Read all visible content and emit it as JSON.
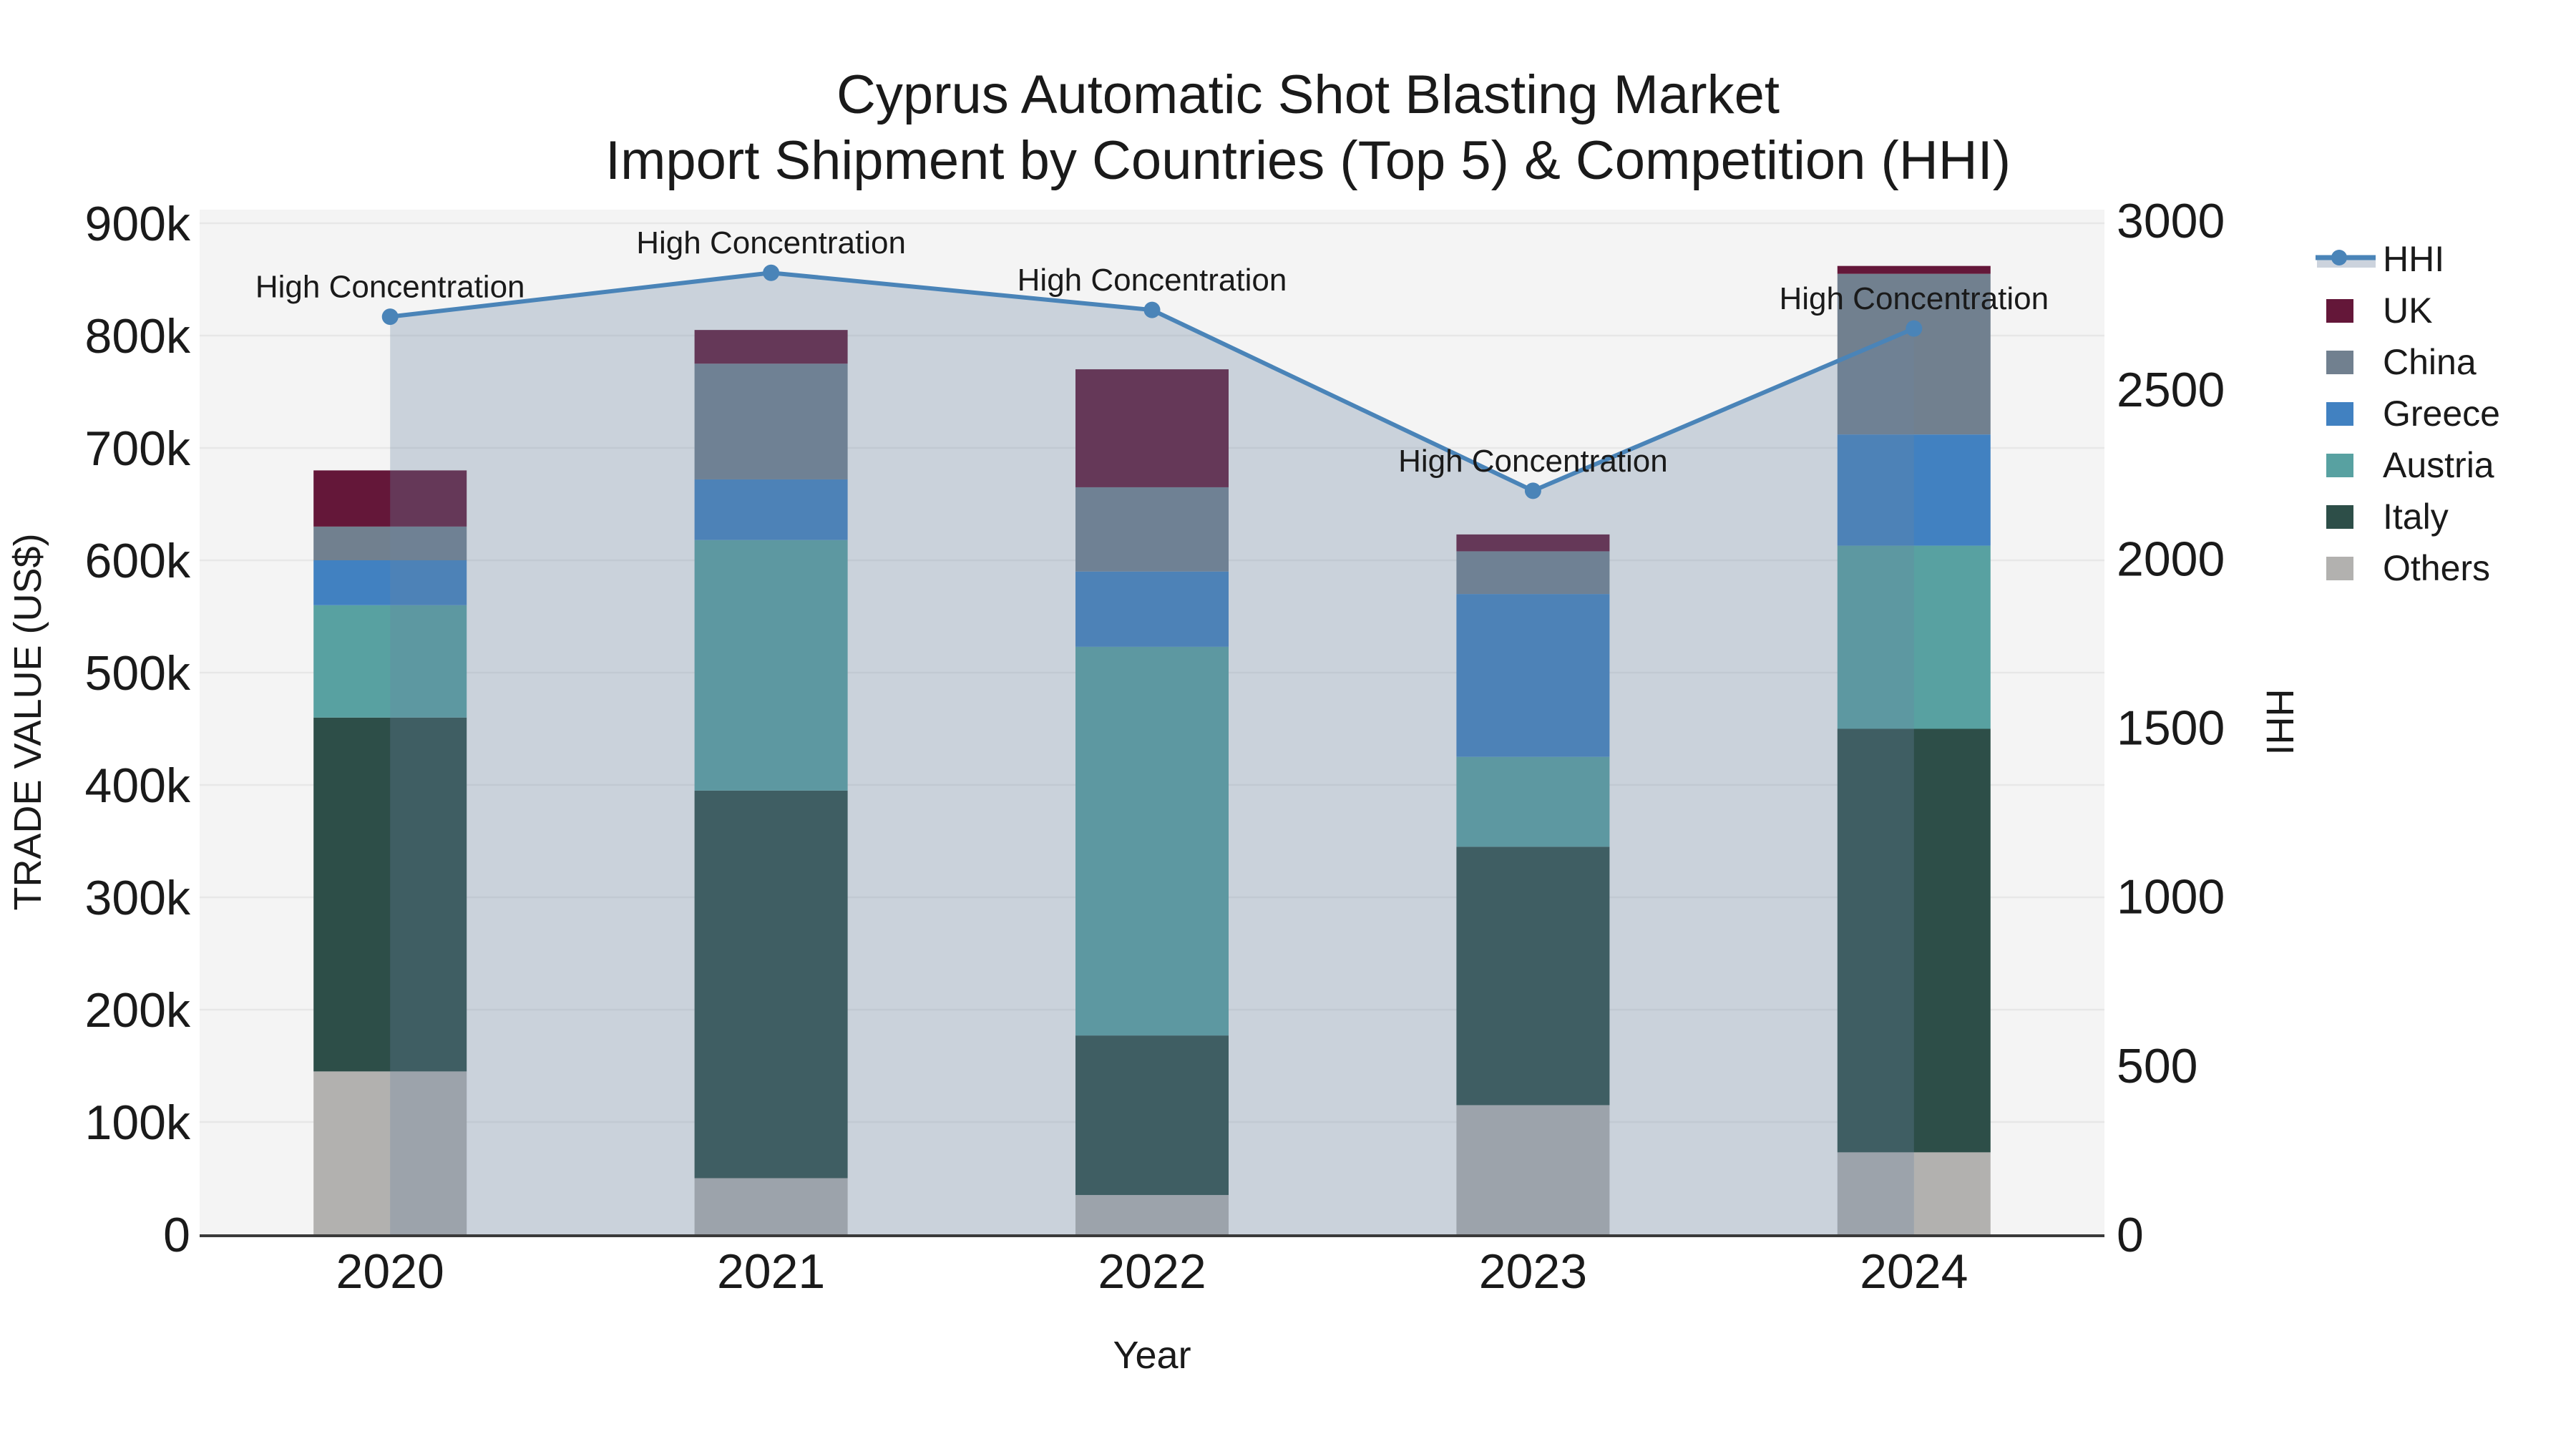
{
  "chart_data": {
    "type": "bar",
    "subtype": "stacked-bars-with-line-area-overlay",
    "title": "Cyprus Automatic Shot Blasting Market",
    "subtitle": "Import Shipment by Countries (Top 5) & Competition (HHI)",
    "xlabel": "Year",
    "ylabel_left": "TRADE VALUE (US$)",
    "ylabel_right": "HHI",
    "categories": [
      "2020",
      "2021",
      "2022",
      "2023",
      "2024"
    ],
    "stack_order_bottom_to_top": [
      "Others",
      "Italy",
      "Austria",
      "Greece",
      "China",
      "UK"
    ],
    "series": [
      {
        "name": "Others",
        "color": "#b2b1af",
        "values": [
          145000,
          50000,
          35000,
          115000,
          73000
        ]
      },
      {
        "name": "Italy",
        "color": "#2d4e48",
        "values": [
          315000,
          345000,
          142000,
          230000,
          377000
        ]
      },
      {
        "name": "Austria",
        "color": "#58a1a1",
        "values": [
          100000,
          223000,
          346000,
          80000,
          163000
        ]
      },
      {
        "name": "Greece",
        "color": "#4181c1",
        "values": [
          40000,
          54000,
          67000,
          145000,
          99000
        ]
      },
      {
        "name": "China",
        "color": "#71808f",
        "values": [
          30000,
          103000,
          75000,
          38000,
          143000
        ]
      },
      {
        "name": "UK",
        "color": "#641739",
        "values": [
          50000,
          30000,
          105000,
          15000,
          7000
        ]
      }
    ],
    "bar_totals": [
      680000,
      805000,
      770000,
      623000,
      862000
    ],
    "line_series": {
      "name": "HHI",
      "color": "#4a84b8",
      "area_fill": "rgba(106,131,163,0.30)",
      "values": [
        2715,
        2845,
        2735,
        2200,
        2680
      ]
    },
    "annotations": [
      {
        "category": "2020",
        "text": "High Concentration"
      },
      {
        "category": "2021",
        "text": "High Concentration"
      },
      {
        "category": "2022",
        "text": "High Concentration"
      },
      {
        "category": "2023",
        "text": "High Concentration"
      },
      {
        "category": "2024",
        "text": "High Concentration"
      }
    ],
    "axes": {
      "left": {
        "min": 0,
        "max": 900000,
        "tick_labels": [
          "0",
          "100k",
          "200k",
          "300k",
          "400k",
          "500k",
          "600k",
          "700k",
          "800k",
          "900k"
        ]
      },
      "right": {
        "min": 0,
        "max": 3000,
        "tick_labels": [
          "0",
          "500",
          "1000",
          "1500",
          "2000",
          "2500",
          "3000"
        ]
      },
      "grid": true
    },
    "legend": {
      "position": "right",
      "entries": [
        {
          "label": "HHI",
          "type": "line"
        },
        {
          "label": "UK",
          "type": "swatch"
        },
        {
          "label": "China",
          "type": "swatch"
        },
        {
          "label": "Greece",
          "type": "swatch"
        },
        {
          "label": "Austria",
          "type": "swatch"
        },
        {
          "label": "Italy",
          "type": "swatch"
        },
        {
          "label": "Others",
          "type": "swatch"
        }
      ]
    },
    "style": {
      "plot_bg": "#f4f4f4",
      "grid_color": "#e7e7e7",
      "axis_line": "#3a3a3a",
      "legend_band": "#ccd3dd",
      "text": "#1a1a1a"
    }
  }
}
